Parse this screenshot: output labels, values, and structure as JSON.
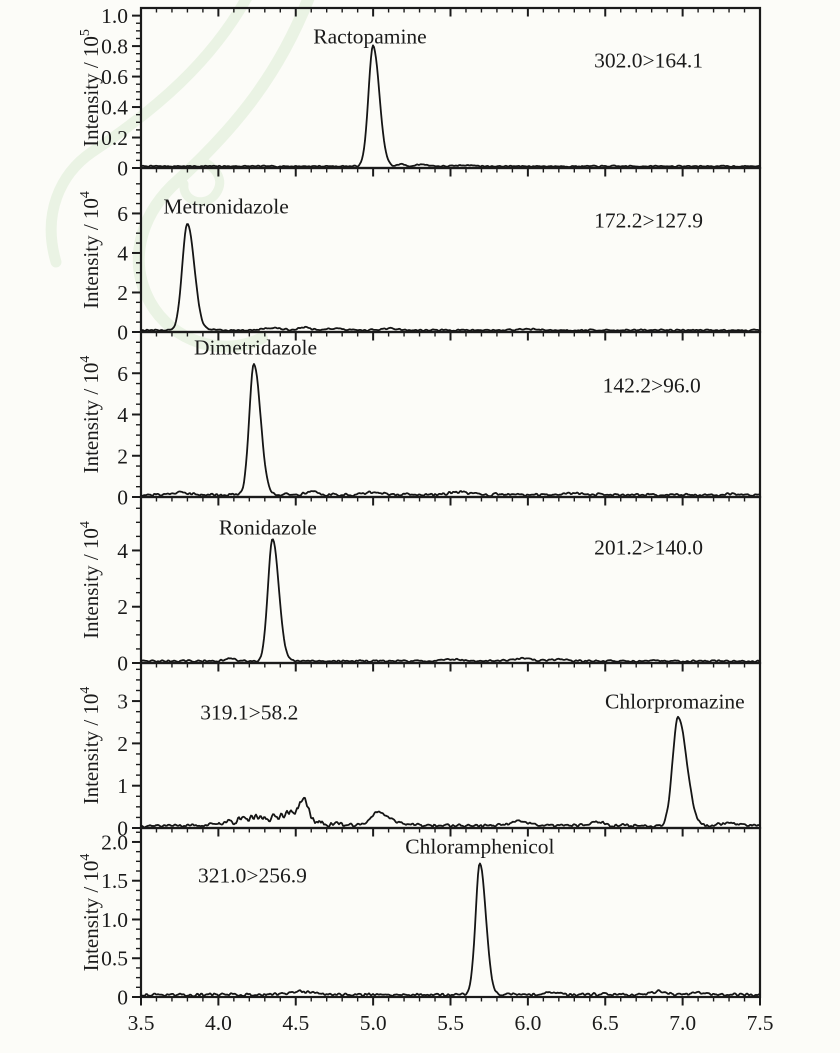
{
  "figure": {
    "background": "#fcfcf8",
    "ink": "#1b1b1b",
    "watermark_color": "#e3f0dc"
  },
  "chart_data": {
    "type": "line",
    "layout": "stacked-panels",
    "title": "",
    "xlabel": "",
    "x_range": [
      3.5,
      7.5
    ],
    "x_major_step": 0.5,
    "x_minor_per_major": 4,
    "x_tick_labels": [
      "3.5",
      "4.0",
      "4.5",
      "5.0",
      "5.5",
      "6.0",
      "6.5",
      "7.0",
      "7.5"
    ],
    "grid": false,
    "panels": [
      {
        "compound": "Ractopamine",
        "transition": "302.0>164.1",
        "ylabel_base": "Intensity / 10",
        "ylabel_exp": "5",
        "y_max": 1.05,
        "y_major_ticks": [
          0,
          0.2,
          0.4,
          0.6,
          0.8,
          1.0
        ],
        "y_tick_labels": [
          "0",
          "0.2",
          "0.4",
          "0.6",
          "0.8",
          "1.0"
        ],
        "y_minor_per_major": 3,
        "peak": {
          "rt": 5.0,
          "height": 0.79,
          "sigma_left": 0.03,
          "sigma_right": 0.04
        },
        "noise_level": 0.006,
        "noise_zones": [],
        "bumps": [
          {
            "rt": 5.18,
            "h": 0.015,
            "s": 0.02
          },
          {
            "rt": 5.32,
            "h": 0.012,
            "s": 0.04
          },
          {
            "rt": 5.6,
            "h": 0.008,
            "s": 0.05
          }
        ],
        "labels": {
          "compound_t": 4.98,
          "compound_dy": 28,
          "transition_t": 6.78,
          "transition_dy": 52
        },
        "seed": 7
      },
      {
        "compound": "Metronidazole",
        "transition": "172.2>127.9",
        "ylabel_base": "Intensity / 10",
        "ylabel_exp": "4",
        "y_max": 8.3,
        "y_major_ticks": [
          0,
          2,
          4,
          6
        ],
        "y_tick_labels": [
          "0",
          "2",
          "4",
          "6"
        ],
        "y_minor_per_major": 3,
        "peak": {
          "rt": 3.8,
          "height": 5.42,
          "sigma_left": 0.033,
          "sigma_right": 0.044
        },
        "noise_level": 0.055,
        "noise_zones": [],
        "bumps": [
          {
            "rt": 4.35,
            "h": 0.12,
            "s": 0.05
          },
          {
            "rt": 4.55,
            "h": 0.14,
            "s": 0.04
          },
          {
            "rt": 4.75,
            "h": 0.1,
            "s": 0.04
          },
          {
            "rt": 5.1,
            "h": 0.08,
            "s": 0.06
          },
          {
            "rt": 6.0,
            "h": 0.06,
            "s": 0.05
          }
        ],
        "labels": {
          "compound_t": 4.05,
          "compound_dy": 38,
          "transition_t": 6.78,
          "transition_dy": 52
        },
        "seed": 13
      },
      {
        "compound": "Dimetridazole",
        "transition": "142.2>96.0",
        "ylabel_base": "Intensity / 10",
        "ylabel_exp": "4",
        "y_max": 8.0,
        "y_major_ticks": [
          0,
          2,
          4,
          6
        ],
        "y_tick_labels": [
          "0",
          "2",
          "4",
          "6"
        ],
        "y_minor_per_major": 3,
        "peak": {
          "rt": 4.23,
          "height": 6.38,
          "sigma_left": 0.03,
          "sigma_right": 0.042
        },
        "noise_level": 0.09,
        "noise_zones": [],
        "bumps": [
          {
            "rt": 3.75,
            "h": 0.12,
            "s": 0.05
          },
          {
            "rt": 4.6,
            "h": 0.15,
            "s": 0.04
          },
          {
            "rt": 5.0,
            "h": 0.12,
            "s": 0.05
          },
          {
            "rt": 5.55,
            "h": 0.14,
            "s": 0.06
          },
          {
            "rt": 6.3,
            "h": 0.1,
            "s": 0.05
          }
        ],
        "labels": {
          "compound_t": 4.24,
          "compound_dy": 15,
          "transition_t": 6.8,
          "transition_dy": 53
        },
        "seed": 21
      },
      {
        "compound": "Ronidazole",
        "transition": "201.2>140.0",
        "ylabel_base": "Intensity / 10",
        "ylabel_exp": "4",
        "y_max": 5.9,
        "y_major_ticks": [
          0,
          2,
          4
        ],
        "y_tick_labels": [
          "0",
          "2",
          "4"
        ],
        "y_minor_per_major": 3,
        "peak": {
          "rt": 4.35,
          "height": 4.33,
          "sigma_left": 0.03,
          "sigma_right": 0.04
        },
        "noise_level": 0.045,
        "noise_zones": [],
        "bumps": [
          {
            "rt": 4.08,
            "h": 0.09,
            "s": 0.03
          },
          {
            "rt": 5.5,
            "h": 0.08,
            "s": 0.06
          },
          {
            "rt": 5.95,
            "h": 0.09,
            "s": 0.07
          },
          {
            "rt": 6.2,
            "h": 0.07,
            "s": 0.05
          }
        ],
        "labels": {
          "compound_t": 4.32,
          "compound_dy": 30,
          "transition_t": 6.78,
          "transition_dy": 50
        },
        "seed": 29
      },
      {
        "compound": "Chlorpromazine",
        "transition": "319.1>58.2",
        "ylabel_base": "Intensity / 10",
        "ylabel_exp": "4",
        "y_max": 3.9,
        "y_major_ticks": [
          0,
          1,
          2,
          3
        ],
        "y_tick_labels": [
          "0",
          "1",
          "2",
          "3"
        ],
        "y_minor_per_major": 3,
        "peak": {
          "rt": 6.97,
          "height": 2.56,
          "sigma_left": 0.035,
          "sigma_right": 0.055
        },
        "noise_level": 0.05,
        "noise_zones": [
          {
            "from": 4.0,
            "to": 4.8,
            "amp": 0.06
          }
        ],
        "bumps": [
          {
            "rt": 4.3,
            "h": 0.14,
            "s": 0.18
          },
          {
            "rt": 4.45,
            "h": 0.15,
            "s": 0.05
          },
          {
            "rt": 4.55,
            "h": 0.5,
            "s": 0.033
          },
          {
            "rt": 5.03,
            "h": 0.24,
            "s": 0.045
          },
          {
            "rt": 5.1,
            "h": 0.12,
            "s": 0.08
          },
          {
            "rt": 5.95,
            "h": 0.09,
            "s": 0.06
          },
          {
            "rt": 6.45,
            "h": 0.1,
            "s": 0.04
          },
          {
            "rt": 7.3,
            "h": 0.07,
            "s": 0.05
          }
        ],
        "labels": {
          "compound_t": 6.95,
          "compound_dy": 38,
          "transition_t": 4.2,
          "transition_dy": 49
        },
        "seed": 37
      },
      {
        "compound": "Chloramphenicol",
        "transition": "321.0>256.9",
        "ylabel_base": "Intensity / 10",
        "ylabel_exp": "4",
        "y_max": 2.18,
        "y_major_ticks": [
          0,
          0.5,
          1.0,
          1.5,
          2.0
        ],
        "y_tick_labels": [
          "0",
          "0.5",
          "1.0",
          "1.5",
          "2.0"
        ],
        "y_minor_per_major": 3,
        "peak": {
          "rt": 5.69,
          "height": 1.7,
          "sigma_left": 0.028,
          "sigma_right": 0.038
        },
        "noise_level": 0.025,
        "noise_zones": [],
        "bumps": [
          {
            "rt": 4.55,
            "h": 0.035,
            "s": 0.08
          },
          {
            "rt": 6.15,
            "h": 0.03,
            "s": 0.05
          },
          {
            "rt": 6.85,
            "h": 0.04,
            "s": 0.05
          },
          {
            "rt": 7.1,
            "h": 0.03,
            "s": 0.04
          }
        ],
        "labels": {
          "compound_t": 5.69,
          "compound_dy": 18,
          "transition_t": 4.22,
          "transition_dy": 47
        },
        "seed": 43
      }
    ]
  }
}
